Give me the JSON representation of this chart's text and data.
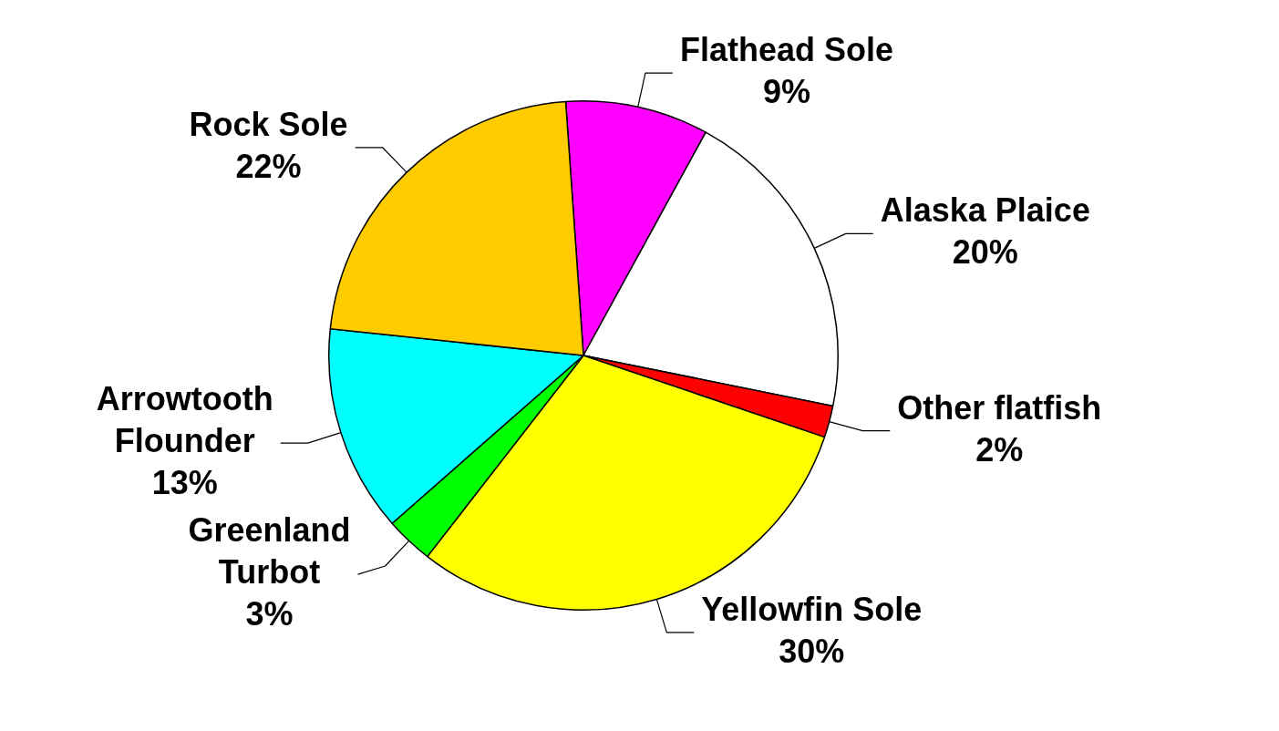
{
  "chart_data": {
    "type": "pie",
    "categories": [
      "Flathead Sole",
      "Alaska Plaice",
      "Other flatfish",
      "Yellowfin Sole",
      "Greenland Turbot",
      "Arrowtooth Flounder",
      "Rock Sole"
    ],
    "values": [
      9,
      20,
      2,
      30,
      3,
      13,
      22
    ],
    "colors": [
      "#ff00ff",
      "#ffffff",
      "#ff0000",
      "#ffff00",
      "#00ff00",
      "#00ffff",
      "#ffcc00"
    ],
    "value_labels": [
      "9%",
      "20%",
      "2%",
      "30%",
      "3%",
      "13%",
      "22%"
    ],
    "legend": false
  }
}
